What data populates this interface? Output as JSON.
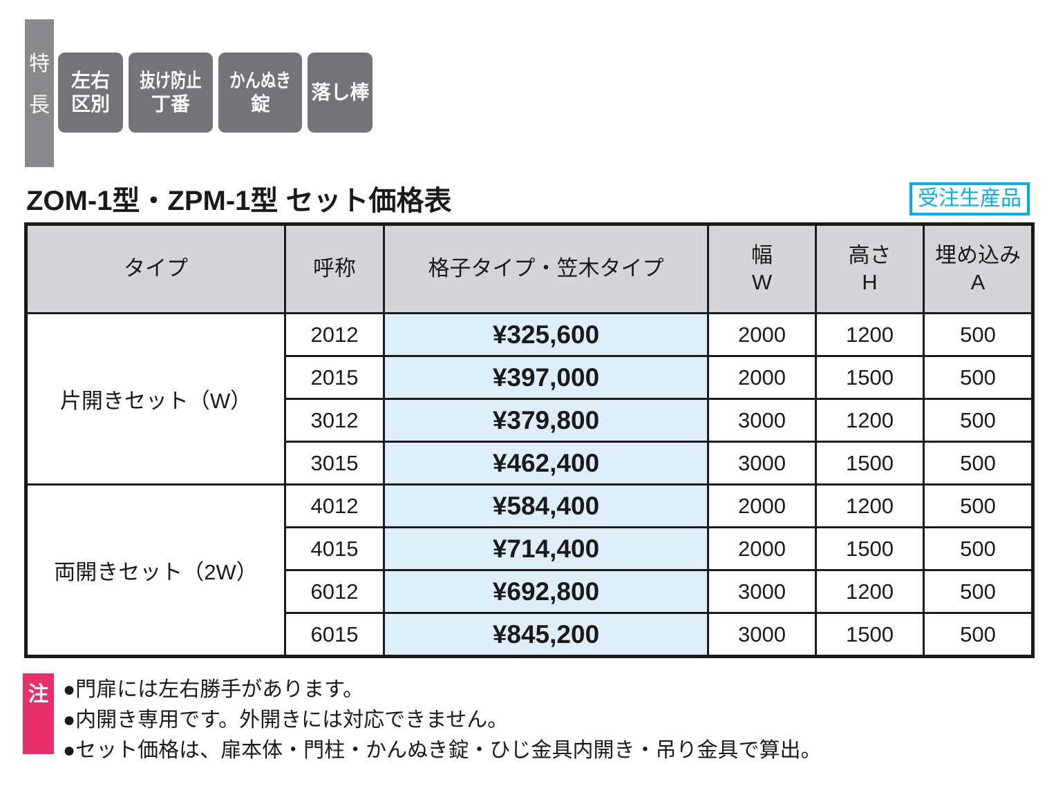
{
  "features": {
    "label_vertical": [
      "特",
      "長"
    ],
    "badges": [
      {
        "lines": [
          "左右",
          "区別"
        ]
      },
      {
        "lines": [
          "抜け防止",
          "丁番"
        ]
      },
      {
        "lines": [
          "かんぬき",
          "錠"
        ]
      },
      {
        "lines": [
          "落し棒"
        ]
      }
    ]
  },
  "title": "ZOM-1型・ZPM-1型 セット価格表",
  "order_badge": "受注生産品",
  "table": {
    "headers": {
      "type": "タイプ",
      "name": "呼称",
      "price": "格子タイプ・笠木タイプ",
      "width_lines": [
        "幅",
        "W"
      ],
      "height_lines": [
        "高さ",
        "H"
      ],
      "embed_lines": [
        "埋め込み",
        "A"
      ]
    },
    "groups": [
      {
        "type": "片開きセット（W）",
        "rows": [
          {
            "name": "2012",
            "price": "¥325,600",
            "w": "2000",
            "h": "1200",
            "a": "500"
          },
          {
            "name": "2015",
            "price": "¥397,000",
            "w": "2000",
            "h": "1500",
            "a": "500"
          },
          {
            "name": "3012",
            "price": "¥379,800",
            "w": "3000",
            "h": "1200",
            "a": "500"
          },
          {
            "name": "3015",
            "price": "¥462,400",
            "w": "3000",
            "h": "1500",
            "a": "500"
          }
        ]
      },
      {
        "type": "両開きセット（2W）",
        "rows": [
          {
            "name": "4012",
            "price": "¥584,400",
            "w": "2000",
            "h": "1200",
            "a": "500"
          },
          {
            "name": "4015",
            "price": "¥714,400",
            "w": "2000",
            "h": "1500",
            "a": "500"
          },
          {
            "name": "6012",
            "price": "¥692,800",
            "w": "3000",
            "h": "1200",
            "a": "500"
          },
          {
            "name": "6015",
            "price": "¥845,200",
            "w": "3000",
            "h": "1500",
            "a": "500"
          }
        ]
      }
    ]
  },
  "notes": {
    "label": "注",
    "items": [
      "●門扉には左右勝手があります。",
      "●内開き専用です。外開きには対応できません。",
      "●セット価格は、扉本体・門柱・かんぬき錠・ひじ金具内開き・吊り金具で算出。"
    ]
  },
  "colors": {
    "accent_blue": "#00AEEF",
    "note_pink": "#E8306B",
    "badge_gray": "#747478",
    "feature_bar_gray": "#8A8A8D",
    "header_gray": "#D5D5D7",
    "price_bg_blue": "#DDEEF8",
    "border_black": "#1A1A1A"
  }
}
